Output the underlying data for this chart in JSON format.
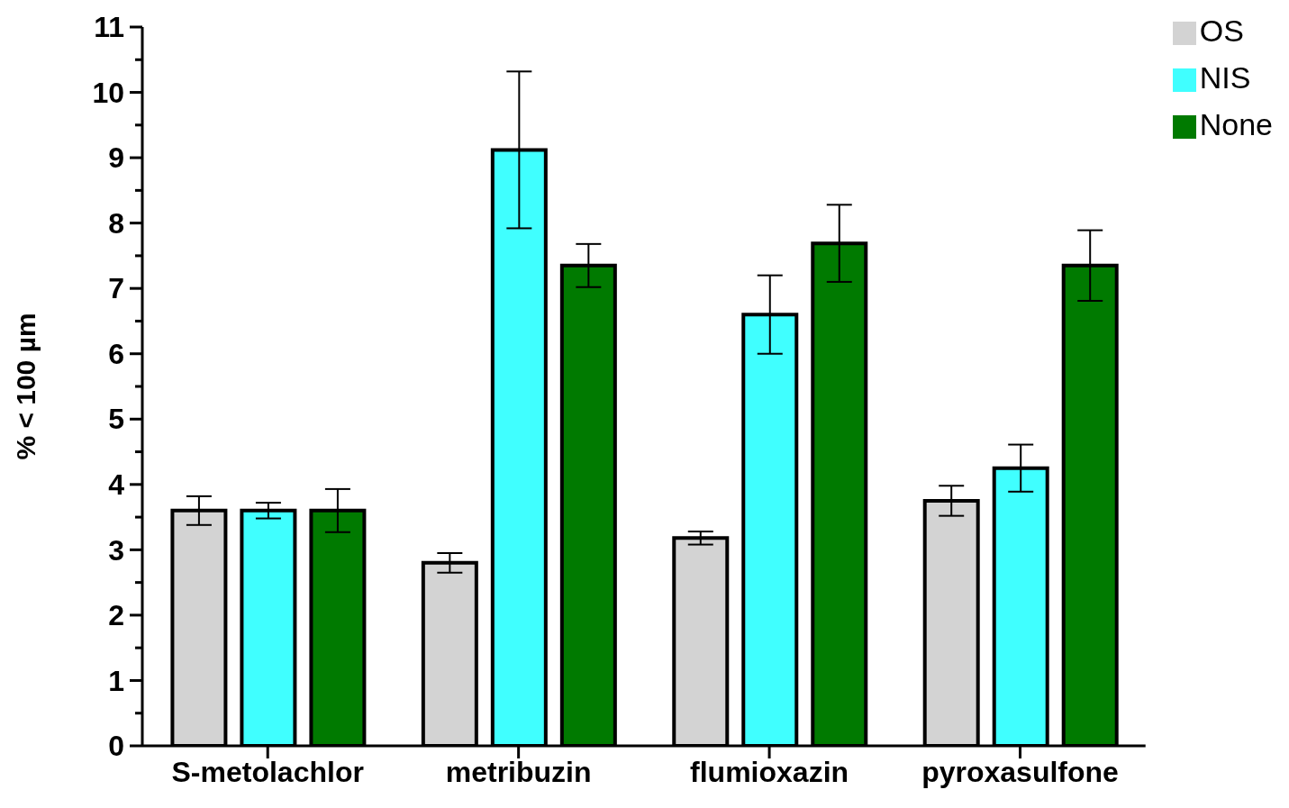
{
  "chart_data": {
    "type": "bar",
    "ylabel": "% < 100 µm",
    "categories": [
      "S-metolachlor",
      "metribuzin",
      "flumioxazin",
      "pyroxasulfone"
    ],
    "series": [
      {
        "name": "OS",
        "color": "#d3d3d3",
        "values": [
          3.6,
          2.8,
          3.18,
          3.75
        ],
        "errors": [
          0.22,
          0.15,
          0.1,
          0.23
        ]
      },
      {
        "name": "NIS",
        "color": "#40ffff",
        "values": [
          3.6,
          9.12,
          6.6,
          4.25
        ],
        "errors": [
          0.12,
          1.2,
          0.6,
          0.36
        ]
      },
      {
        "name": "None",
        "color": "#007a00",
        "values": [
          3.6,
          7.35,
          7.69,
          7.35
        ],
        "errors": [
          0.33,
          0.33,
          0.59,
          0.54
        ]
      }
    ],
    "ylim": [
      0,
      11
    ],
    "yticks": [
      0,
      {
        "value": 0.5,
        "label": null
      },
      1,
      {
        "value": 1.5,
        "label": null
      },
      2,
      {
        "value": 2.5,
        "label": null
      },
      3,
      {
        "value": 3.5,
        "label": null
      },
      4,
      {
        "value": 4.5,
        "label": null
      },
      5,
      {
        "value": 5.5,
        "label": null
      },
      6,
      {
        "value": 6.5,
        "label": null
      },
      7,
      {
        "value": 7.5,
        "label": null
      },
      8,
      {
        "value": 8.5,
        "label": null
      },
      9,
      {
        "value": 9.5,
        "label": null
      },
      10,
      {
        "value": 10.5,
        "label": null
      },
      11
    ],
    "grid": false,
    "legend": "top right"
  }
}
